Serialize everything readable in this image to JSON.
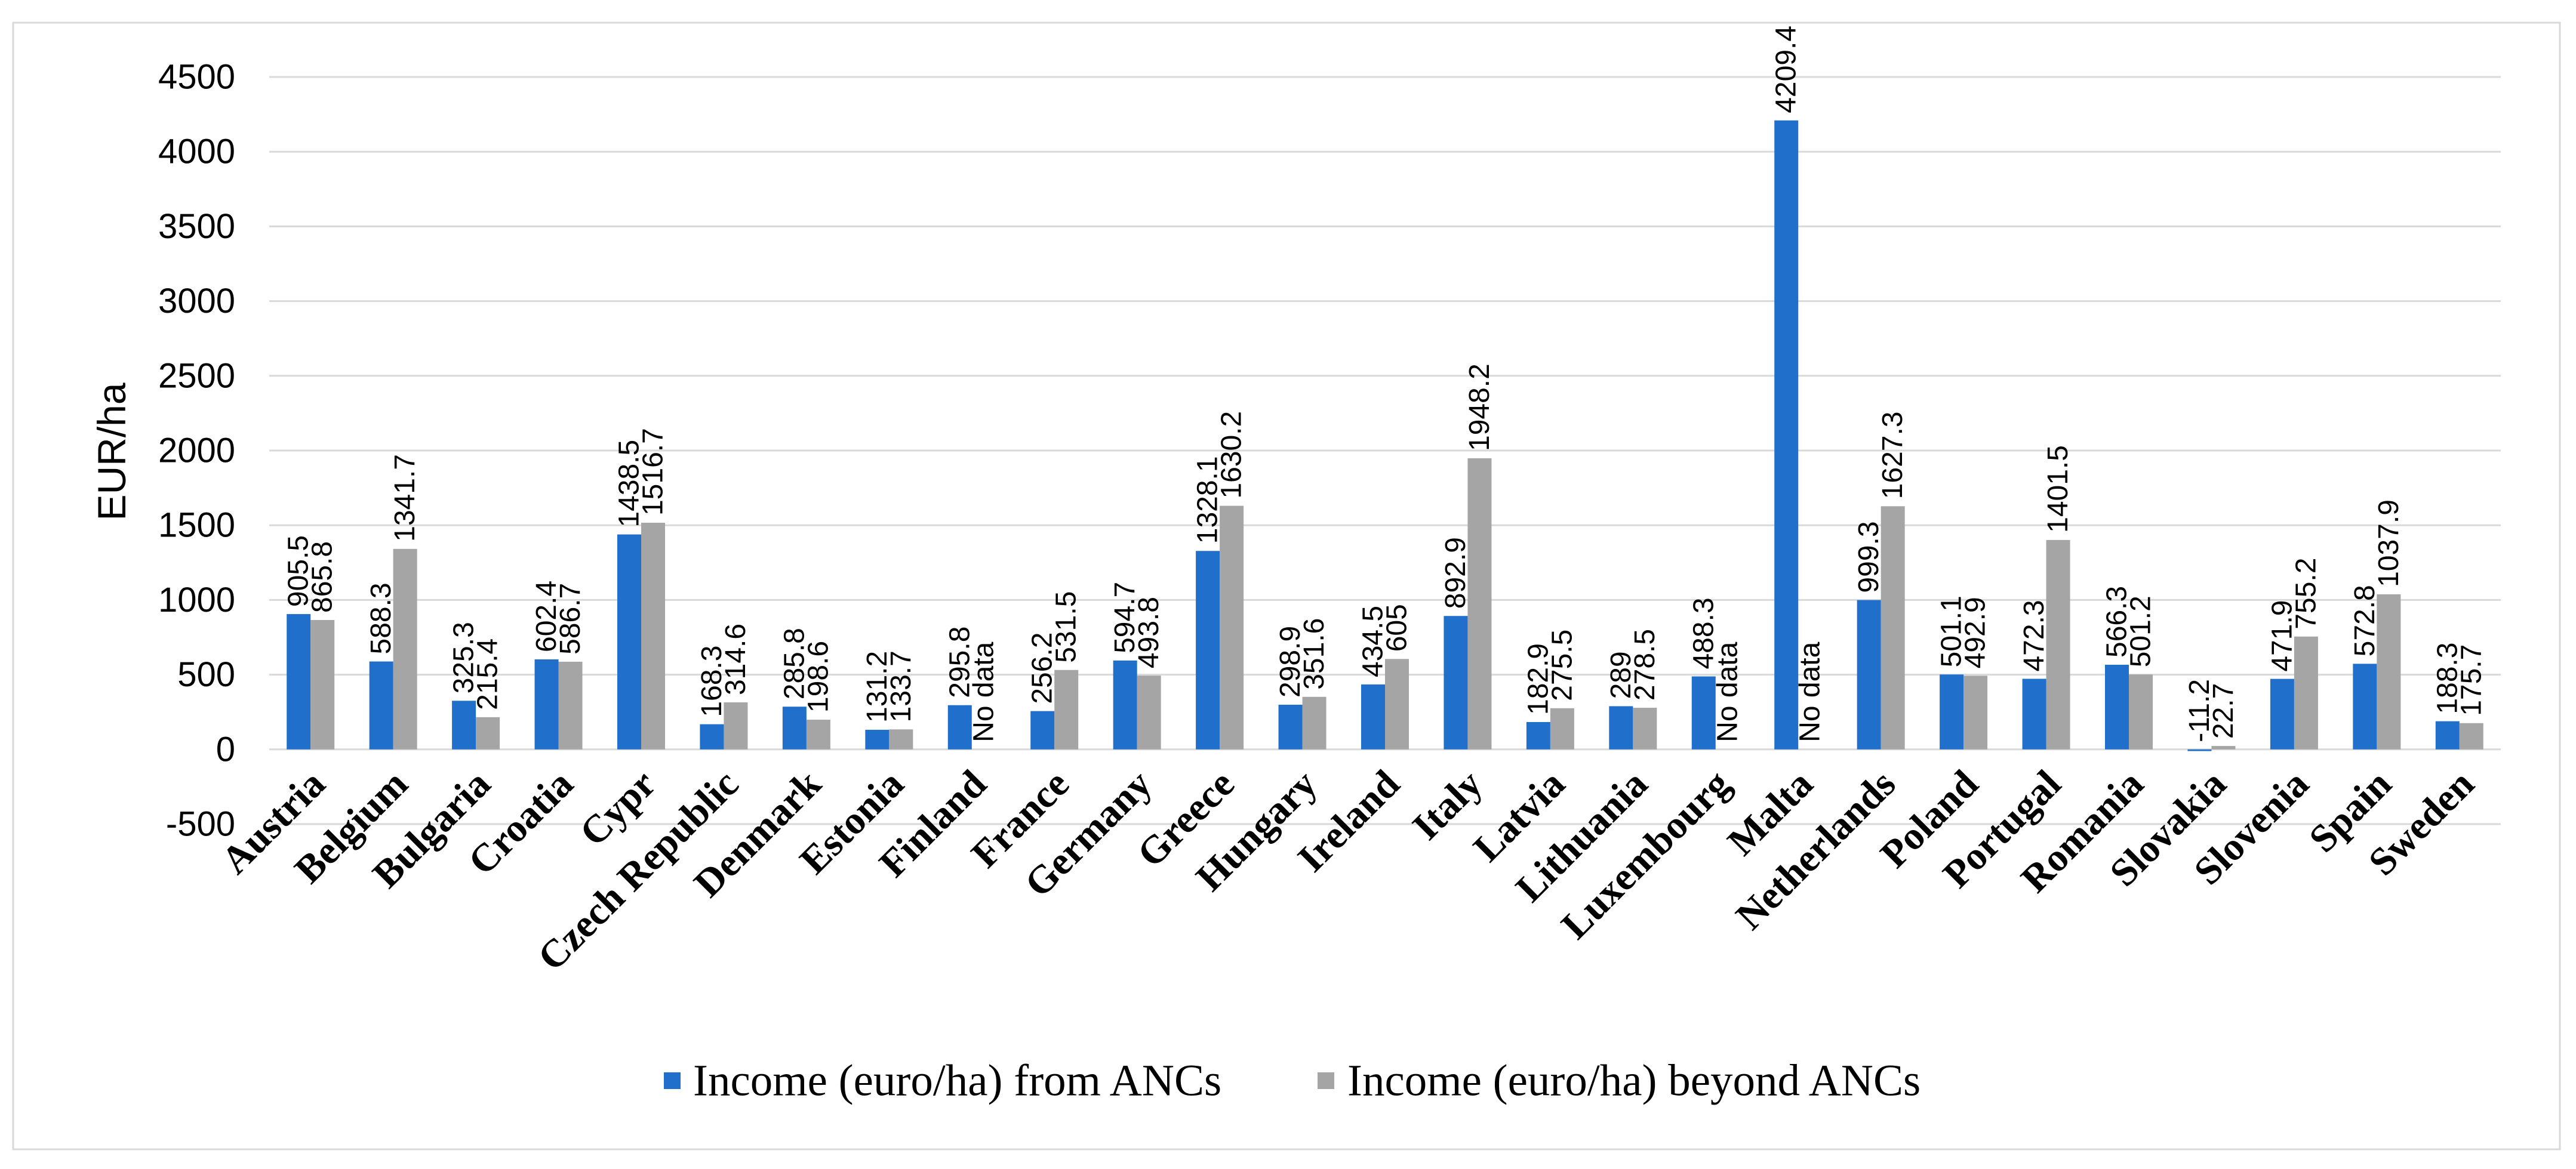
{
  "chart_data": {
    "type": "bar",
    "title": "",
    "xlabel": "",
    "ylabel": "EUR/ha",
    "ylim": [
      -500,
      4500
    ],
    "yticks": [
      -500,
      0,
      500,
      1000,
      1500,
      2000,
      2500,
      3000,
      3500,
      4000,
      4500
    ],
    "grid": true,
    "missing_label": "No data",
    "categories": [
      "Austria",
      "Belgium",
      "Bulgaria",
      "Croatia",
      "Cypr",
      "Czech Republic",
      "Denmark",
      "Estonia",
      "Finland",
      "France",
      "Germany",
      "Greece",
      "Hungary",
      "Ireland",
      "Italy",
      "Latvia",
      "Lithuania",
      "Luxembourg",
      "Malta",
      "Netherlands",
      "Poland",
      "Portugal",
      "Romania",
      "Slovakia",
      "Slovenia",
      "Spain",
      "Sweden"
    ],
    "series": [
      {
        "name": "Income (euro/ha) from ANCs",
        "color": "#1F6FCB",
        "values": [
          905.5,
          588.3,
          325.3,
          602.4,
          1438.5,
          168.3,
          285.8,
          131.2,
          295.8,
          256.2,
          594.7,
          1328.1,
          298.9,
          434.5,
          892.9,
          182.9,
          289,
          488.3,
          4209.4,
          999.3,
          501.1,
          472.3,
          566.3,
          -11.2,
          471.9,
          572.8,
          188.3
        ]
      },
      {
        "name": "Income (euro/ha) beyond ANCs",
        "color": "#A5A5A5",
        "values": [
          865.8,
          1341.7,
          215.4,
          586.7,
          1516.7,
          314.6,
          198.6,
          133.7,
          null,
          531.5,
          493.8,
          1630.2,
          351.6,
          605,
          1948.2,
          275.5,
          278.5,
          null,
          null,
          1627.3,
          492.9,
          1401.5,
          501.2,
          22.7,
          755.2,
          1037.9,
          175.7
        ]
      }
    ]
  }
}
